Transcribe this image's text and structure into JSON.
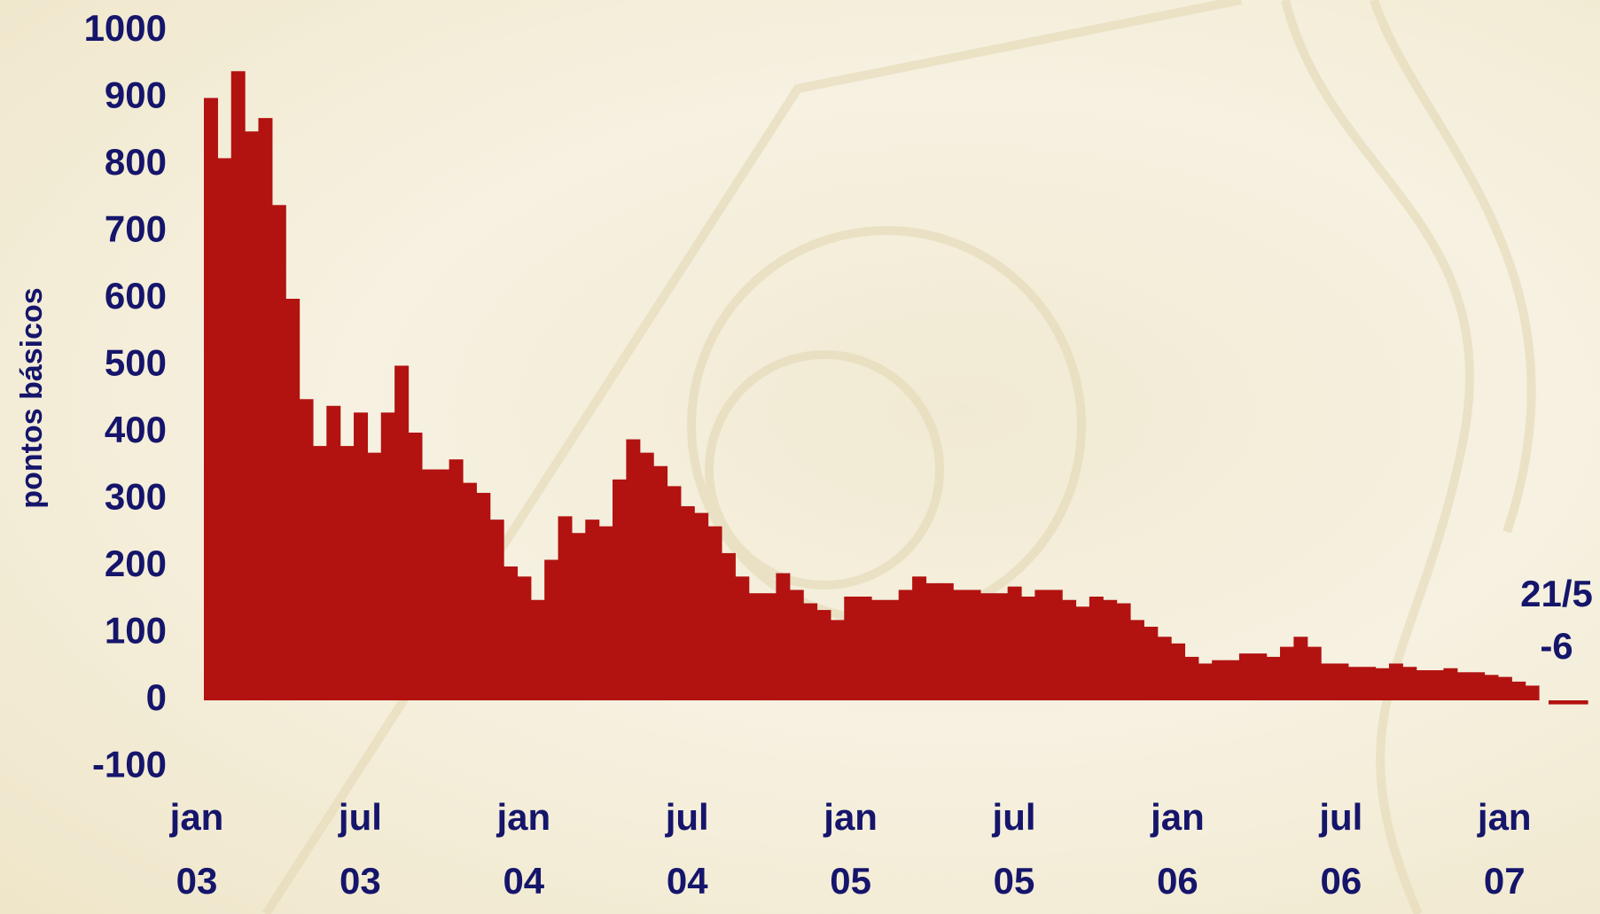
{
  "chart_data": {
    "type": "bar",
    "y_label": "pontos básicos",
    "color": "#b21210",
    "ylim": [
      -100,
      1000
    ],
    "yticks": [
      -100,
      0,
      100,
      200,
      300,
      400,
      500,
      600,
      700,
      800,
      900,
      1000
    ],
    "grid": false,
    "categories": [
      "jan 03",
      null,
      null,
      null,
      null,
      null,
      null,
      null,
      null,
      null,
      null,
      null,
      "jul 03",
      null,
      null,
      null,
      null,
      null,
      null,
      null,
      null,
      null,
      null,
      null,
      "jan 04",
      null,
      null,
      null,
      null,
      null,
      null,
      null,
      null,
      null,
      null,
      null,
      "jul 04",
      null,
      null,
      null,
      null,
      null,
      null,
      null,
      null,
      null,
      null,
      null,
      "jan 05",
      null,
      null,
      null,
      null,
      null,
      null,
      null,
      null,
      null,
      null,
      null,
      "jul 05",
      null,
      null,
      null,
      null,
      null,
      null,
      null,
      null,
      null,
      null,
      null,
      "jan 06",
      null,
      null,
      null,
      null,
      null,
      null,
      null,
      null,
      null,
      null,
      null,
      "jul 06",
      null,
      null,
      null,
      null,
      null,
      null,
      null,
      null,
      null,
      null,
      null,
      "jan 07",
      null
    ],
    "values": [
      900,
      810,
      940,
      850,
      870,
      740,
      600,
      450,
      380,
      440,
      380,
      430,
      370,
      430,
      500,
      400,
      345,
      345,
      360,
      325,
      310,
      270,
      200,
      185,
      150,
      210,
      275,
      250,
      270,
      260,
      330,
      390,
      370,
      350,
      320,
      290,
      280,
      260,
      220,
      185,
      160,
      160,
      190,
      165,
      145,
      135,
      120,
      155,
      155,
      150,
      150,
      165,
      185,
      175,
      175,
      165,
      165,
      160,
      160,
      170,
      155,
      165,
      165,
      150,
      140,
      155,
      150,
      145,
      120,
      110,
      95,
      85,
      65,
      55,
      60,
      60,
      70,
      70,
      65,
      80,
      95,
      80,
      55,
      55,
      50,
      50,
      48,
      55,
      50,
      45,
      45,
      48,
      42,
      42,
      38,
      35,
      28,
      22
    ],
    "annotation": {
      "label": "21/5",
      "value": -6
    }
  }
}
